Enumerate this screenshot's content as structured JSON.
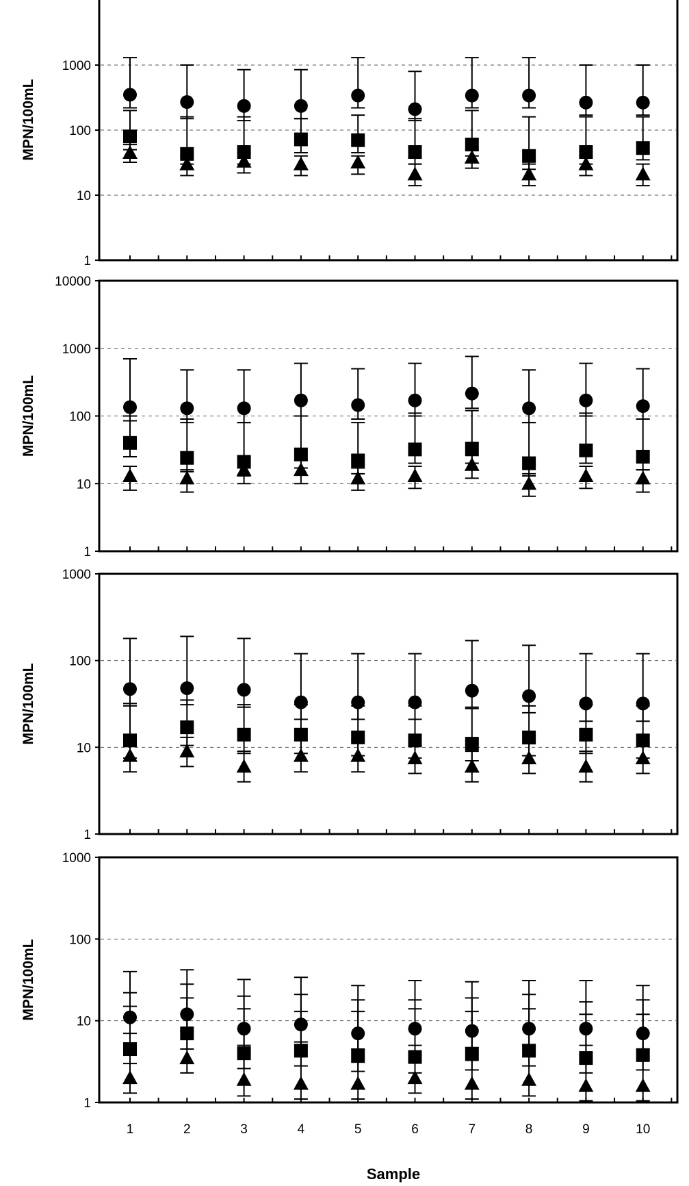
{
  "x_axis": {
    "label": "Sample",
    "ticks": [
      "1",
      "2",
      "3",
      "4",
      "5",
      "6",
      "7",
      "8",
      "9",
      "10"
    ]
  },
  "chart_data": [
    {
      "type": "scatter",
      "panel": 1,
      "yscale": "log",
      "ylim": [
        1,
        10000
      ],
      "ytick_labels": [
        "1",
        "10",
        "100",
        "1000"
      ],
      "ylabel": "MPN/100mL",
      "grid": true,
      "x": [
        1,
        2,
        3,
        4,
        5,
        6,
        7,
        8,
        9,
        10
      ],
      "series": [
        {
          "marker": "circle",
          "values": [
            350,
            270,
            235,
            235,
            340,
            210,
            340,
            340,
            265,
            265
          ],
          "err_upper": [
            1300,
            1000,
            850,
            850,
            1300,
            800,
            1300,
            1300,
            1000,
            1000
          ],
          "err_lower": [
            220,
            150,
            140,
            150,
            220,
            140,
            220,
            220,
            170,
            170
          ]
        },
        {
          "marker": "square",
          "values": [
            80,
            43,
            46,
            72,
            70,
            46,
            60,
            40,
            46,
            53
          ],
          "err_upper": [
            200,
            160,
            160,
            150,
            170,
            150,
            200,
            160,
            160,
            160
          ],
          "err_lower": [
            50,
            30,
            30,
            45,
            45,
            30,
            40,
            25,
            30,
            35
          ]
        },
        {
          "marker": "triangle",
          "values": [
            45,
            30,
            33,
            30,
            32,
            21,
            38,
            21,
            30,
            21
          ],
          "err_upper": [
            60,
            40,
            45,
            40,
            40,
            30,
            50,
            30,
            40,
            30
          ],
          "err_lower": [
            32,
            20,
            22,
            20,
            21,
            14,
            26,
            14,
            20,
            14
          ]
        }
      ]
    },
    {
      "type": "scatter",
      "panel": 2,
      "yscale": "log",
      "ylim": [
        1,
        10000
      ],
      "ytick_labels": [
        "1",
        "10",
        "100",
        "1000",
        "10000"
      ],
      "ylabel": "MPN/100mL",
      "grid": true,
      "x": [
        1,
        2,
        3,
        4,
        5,
        6,
        7,
        8,
        9,
        10
      ],
      "series": [
        {
          "marker": "circle",
          "values": [
            135,
            130,
            130,
            170,
            145,
            170,
            215,
            130,
            170,
            140
          ],
          "err_upper": [
            700,
            480,
            480,
            600,
            500,
            600,
            760,
            480,
            600,
            500
          ],
          "err_lower": [
            85,
            80,
            80,
            100,
            90,
            100,
            130,
            80,
            100,
            90
          ]
        },
        {
          "marker": "square",
          "values": [
            40,
            24,
            21,
            27,
            22,
            32,
            33,
            20,
            31,
            25
          ],
          "err_upper": [
            100,
            90,
            80,
            100,
            80,
            110,
            120,
            80,
            110,
            90
          ],
          "err_lower": [
            25,
            15,
            13,
            17,
            14,
            20,
            20,
            13,
            20,
            16
          ]
        },
        {
          "marker": "triangle",
          "values": [
            13,
            12,
            16,
            16,
            12,
            13,
            19,
            10,
            13,
            12
          ],
          "err_upper": [
            18,
            16,
            22,
            22,
            17,
            18,
            26,
            14,
            18,
            16
          ],
          "err_lower": [
            8,
            7.5,
            10,
            10,
            8,
            8.5,
            12,
            6.5,
            8.5,
            7.5
          ]
        }
      ]
    },
    {
      "type": "scatter",
      "panel": 3,
      "yscale": "log",
      "ylim": [
        1,
        1000
      ],
      "ytick_labels": [
        "1",
        "10",
        "100",
        "1000"
      ],
      "ylabel": "MPN/100mL",
      "grid": true,
      "x": [
        1,
        2,
        3,
        4,
        5,
        6,
        7,
        8,
        9,
        10
      ],
      "series": [
        {
          "marker": "circle",
          "values": [
            47,
            48,
            46,
            33,
            33,
            33,
            45,
            39,
            32,
            32
          ],
          "err_upper": [
            180,
            190,
            180,
            120,
            120,
            120,
            170,
            150,
            120,
            120
          ],
          "err_lower": [
            30,
            31,
            29,
            21,
            21,
            21,
            29,
            25,
            20,
            20
          ]
        },
        {
          "marker": "square",
          "values": [
            12,
            17,
            14,
            14,
            13,
            12,
            11,
            13,
            14,
            12
          ],
          "err_upper": [
            32,
            35,
            31,
            31,
            30,
            30,
            28,
            30,
            31,
            30
          ],
          "err_lower": [
            7.5,
            10.5,
            8.5,
            8.5,
            8,
            7.5,
            7,
            8,
            8.5,
            7.5
          ]
        },
        {
          "marker": "triangle",
          "values": [
            8,
            9,
            6,
            8,
            8,
            7.5,
            6,
            7.5,
            6,
            7.5
          ],
          "err_upper": [
            12,
            13,
            9,
            12,
            12,
            11,
            9,
            11,
            9,
            11
          ],
          "err_lower": [
            5.2,
            6,
            4,
            5.2,
            5.2,
            5,
            4,
            5,
            4,
            5
          ]
        }
      ]
    },
    {
      "type": "scatter",
      "panel": 4,
      "yscale": "log",
      "ylim": [
        1,
        1000
      ],
      "ytick_labels": [
        "1",
        "10",
        "100",
        "1000"
      ],
      "ylabel": "MPN/100mL",
      "grid": true,
      "x": [
        1,
        2,
        3,
        4,
        5,
        6,
        7,
        8,
        9,
        10
      ],
      "series": [
        {
          "marker": "circle",
          "values": [
            11,
            12,
            8,
            9,
            7,
            8,
            7.5,
            8,
            8,
            7
          ],
          "err_upper": [
            40,
            42,
            32,
            34,
            27,
            31,
            30,
            31,
            31,
            27
          ],
          "err_lower": [
            7,
            7.5,
            5,
            5.5,
            4.5,
            5,
            4.7,
            5,
            5,
            4.5
          ]
        },
        {
          "marker": "square",
          "values": [
            4.5,
            7,
            4,
            4.3,
            3.7,
            3.6,
            3.9,
            4.3,
            3.5,
            3.8
          ],
          "err_upper": [
            22,
            28,
            20,
            21,
            18,
            18,
            19,
            21,
            17,
            18
          ],
          "err_lower": [
            3,
            4.5,
            2.6,
            2.8,
            2.4,
            2.3,
            2.5,
            2.8,
            2.3,
            2.5
          ]
        },
        {
          "marker": "triangle",
          "values": [
            2,
            3.5,
            1.9,
            1.7,
            1.7,
            2,
            1.7,
            1.9,
            1.6,
            1.6
          ],
          "err_upper": [
            15,
            19,
            14,
            13,
            13,
            14,
            13,
            14,
            12,
            12
          ],
          "err_lower": [
            1.3,
            2.3,
            1.2,
            1.1,
            1.1,
            1.3,
            1.1,
            1.2,
            1.05,
            1.05
          ]
        }
      ]
    }
  ]
}
